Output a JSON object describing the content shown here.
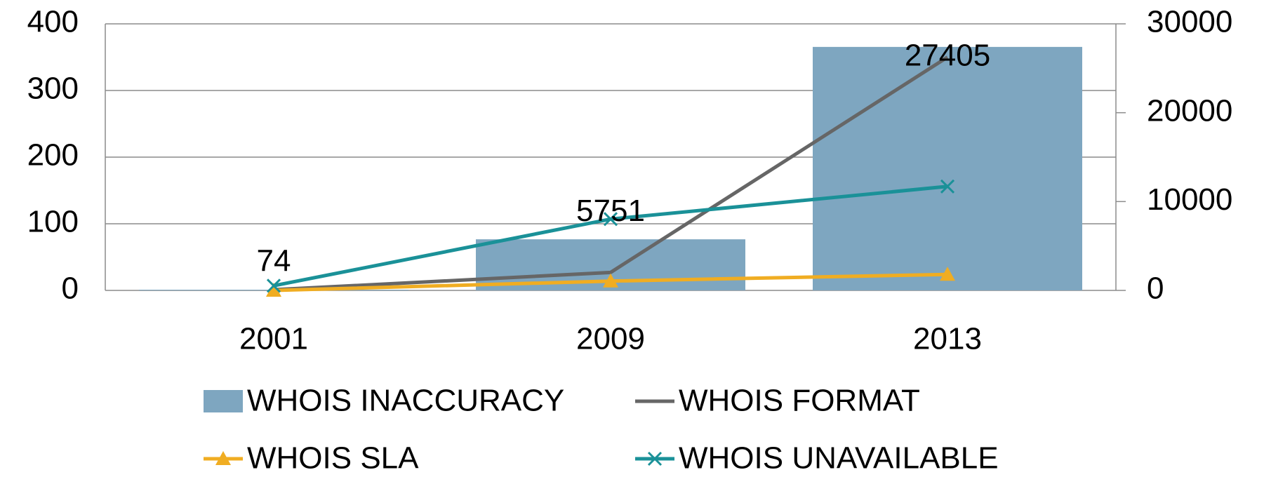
{
  "chart_data": {
    "type": "bar-line",
    "categories": [
      "2001",
      "2009",
      "2013"
    ],
    "series": [
      {
        "name": "WHOIS INACCURACY",
        "type": "bar",
        "axis": "y2",
        "color": "#7ea6c0",
        "values": [
          74,
          5751,
          27405
        ]
      },
      {
        "name": "WHOIS FORMAT",
        "type": "line",
        "color": "#666666",
        "marker": "none",
        "values": [
          1,
          27,
          350
        ]
      },
      {
        "name": "WHOIS SLA",
        "type": "line",
        "color": "#f0ad22",
        "marker": "triangle",
        "values": [
          0,
          14,
          24
        ]
      },
      {
        "name": "WHOIS UNAVAILABLE",
        "type": "line",
        "color": "#1a9198",
        "marker": "x",
        "values": [
          7,
          107,
          156
        ]
      }
    ],
    "ylim": [
      0,
      400
    ],
    "yticks": [
      0,
      100,
      200,
      300,
      400
    ],
    "y2lim": [
      0,
      30000
    ],
    "y2ticks": [
      0,
      10000,
      20000,
      30000
    ],
    "grid": true,
    "legend": "bottom"
  }
}
